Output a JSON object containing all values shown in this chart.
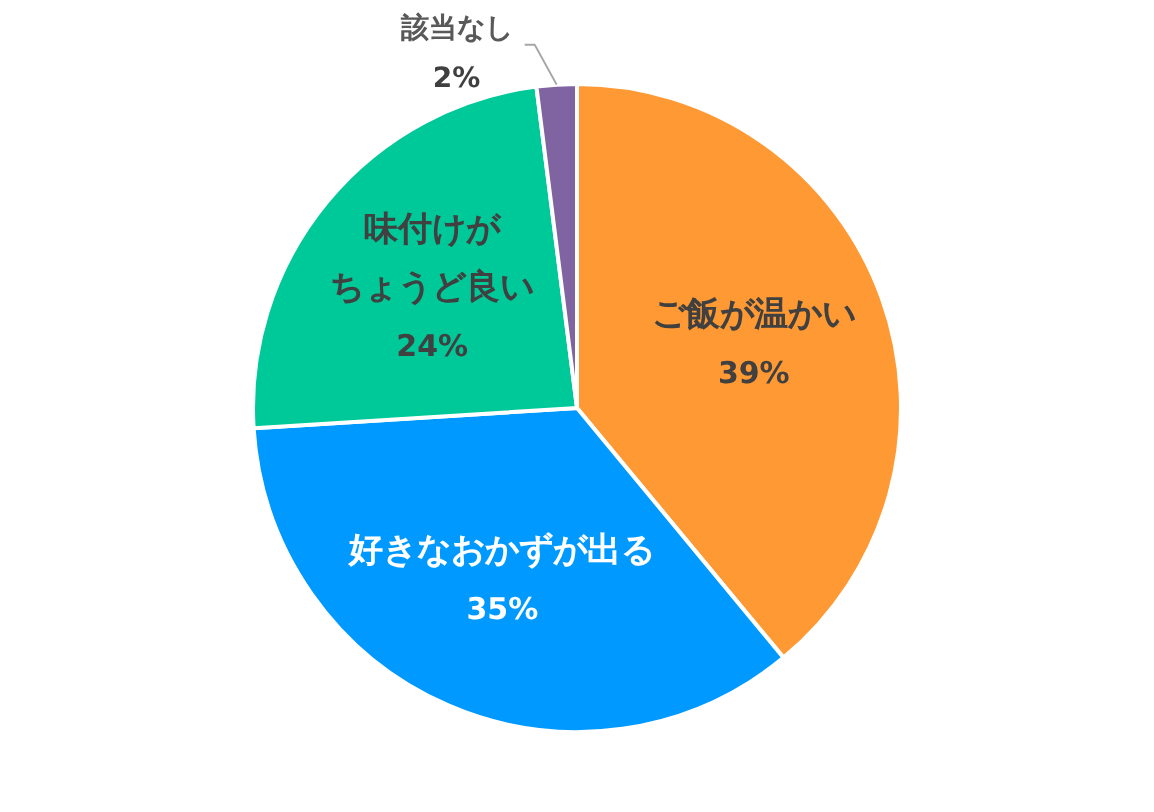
{
  "chart_data": {
    "type": "pie",
    "categories": [
      "ご飯が温かい",
      "好きなおかずが出る",
      "味付けがちょうど良い",
      "該当なし"
    ],
    "values": [
      39,
      35,
      24,
      2
    ],
    "colors": [
      "#ff9933",
      "#0099ff",
      "#00c999",
      "#8064a2"
    ],
    "value_labels": [
      "39%",
      "35%",
      "24%",
      "2%"
    ]
  }
}
